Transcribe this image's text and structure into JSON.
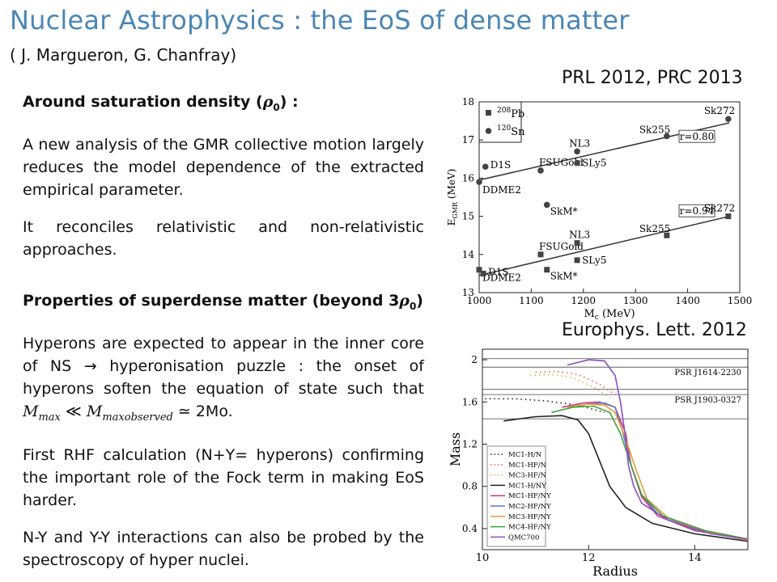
{
  "title": "Nuclear Astrophysics : the EoS of dense matter",
  "authors": "( J. Margueron, G. Chanfray)",
  "sections": [
    {
      "heading_prefix": "Around saturation density (",
      "heading_sym": "ρ",
      "heading_sub": "0",
      "heading_suffix": ") :",
      "para1": "A new analysis of the GMR collective motion largely reduces the model dependence of the extracted empirical parameter.",
      "para2": "It reconciles relativistic and non-relativistic approaches."
    },
    {
      "heading_prefix": "Properties of superdense matter (beyond 3",
      "heading_sym": "ρ",
      "heading_sub": "0",
      "heading_suffix": ")",
      "para1a": "Hyperons are expected to appear in the inner core of NS → hyperonisation puzzle : the onset of hyperons soften the equation of state such that ",
      "para1_math_a": "M",
      "para1_math_a_sub": "max",
      "para1_math_op": " ≪ ",
      "para1_math_b": "M",
      "para1_math_b_sub": "maxobserved",
      "para1_math_end": " ≃ 2Mo.",
      "para2": "First RHF calculation (N+Y= hyperons) confirming the important role of the Fock term in making EoS harder.",
      "para3": "N-Y and Y-Y interactions can also be probed by the spectroscopy of hyper nuclei."
    }
  ],
  "ref1": "PRL 2012, PRC 2013",
  "ref2": "Europhys. Lett. 2012",
  "chart_data": [
    {
      "type": "scatter",
      "xlabel": "M",
      "xlabel_sub": "c",
      "xlabel_unit": " (MeV)",
      "ylabel": "E",
      "ylabel_sub": "GMR",
      "ylabel_unit": " (MeV)",
      "xlim": [
        1000,
        1500
      ],
      "ylim": [
        13,
        18
      ],
      "xticks": [
        1000,
        1100,
        1200,
        1300,
        1400,
        1500
      ],
      "yticks": [
        13,
        14,
        15,
        16,
        17,
        18
      ],
      "legend": [
        {
          "marker": "square",
          "mass": "208",
          "label": "Pb"
        },
        {
          "marker": "circle",
          "mass": "120",
          "label": "Sn"
        }
      ],
      "series": [
        {
          "marker": "circle",
          "fit": "r=0.80",
          "fit_line": [
            [
              1000,
              15.95
            ],
            [
              1480,
              17.45
            ]
          ],
          "points": [
            {
              "x": 1000,
              "y": 15.9,
              "label": "DDME2"
            },
            {
              "x": 1012,
              "y": 16.3,
              "label": "D1S"
            },
            {
              "x": 1118,
              "y": 16.2,
              "label": "FSUGold"
            },
            {
              "x": 1130,
              "y": 15.3,
              "label": "SkM*"
            },
            {
              "x": 1188,
              "y": 16.7,
              "label": "NL3"
            },
            {
              "x": 1188,
              "y": 16.4,
              "label": "SLy5"
            },
            {
              "x": 1360,
              "y": 17.1,
              "label": "Sk255"
            },
            {
              "x": 1478,
              "y": 17.55,
              "label": "Sk272"
            }
          ]
        },
        {
          "marker": "square",
          "fit": "r=0.94",
          "fit_line": [
            [
              1000,
              13.45
            ],
            [
              1480,
              15.0
            ]
          ],
          "points": [
            {
              "x": 1000,
              "y": 13.6,
              "label": "DDME2"
            },
            {
              "x": 1008,
              "y": 13.5,
              "label": "D1S"
            },
            {
              "x": 1118,
              "y": 14.0,
              "label": "FSUGold"
            },
            {
              "x": 1130,
              "y": 13.6,
              "label": "SkM*"
            },
            {
              "x": 1188,
              "y": 14.3,
              "label": "NL3"
            },
            {
              "x": 1188,
              "y": 13.85,
              "label": "SLy5"
            },
            {
              "x": 1360,
              "y": 14.5,
              "label": "Sk255"
            },
            {
              "x": 1478,
              "y": 15.0,
              "label": "Sk272"
            }
          ]
        }
      ]
    },
    {
      "type": "line",
      "xlabel": "Radius",
      "ylabel": "Mass",
      "xlim": [
        10,
        15
      ],
      "ylim": [
        0.2,
        2.1
      ],
      "xticks": [
        10,
        12,
        14
      ],
      "yticks": [
        0.4,
        0.8,
        1.2,
        1.6,
        2
      ],
      "hlines": [
        {
          "y": 2.01,
          "label": ""
        },
        {
          "y": 1.93,
          "label": "PSR J1614-2230"
        },
        {
          "y": 1.72,
          "label": ""
        },
        {
          "y": 1.67,
          "label": "PSR J1903-0327"
        },
        {
          "y": 1.44,
          "label": ""
        }
      ],
      "series": [
        {
          "name": "MC1-H/N",
          "color": "#222222",
          "dash": "dot",
          "points": [
            [
              10.05,
              1.63
            ],
            [
              10.6,
              1.63
            ],
            [
              11.2,
              1.61
            ],
            [
              11.8,
              1.57
            ],
            [
              12.3,
              1.5
            ]
          ]
        },
        {
          "name": "MC1-HF/N",
          "color": "#e06050",
          "dash": "dot",
          "points": [
            [
              11.0,
              1.88
            ],
            [
              11.4,
              1.89
            ],
            [
              11.8,
              1.86
            ],
            [
              12.2,
              1.77
            ],
            [
              12.5,
              1.67
            ]
          ]
        },
        {
          "name": "MC3-HF/N",
          "color": "#e0b040",
          "dash": "dot",
          "points": [
            [
              10.9,
              1.85
            ],
            [
              11.3,
              1.86
            ],
            [
              11.7,
              1.83
            ],
            [
              12.1,
              1.74
            ],
            [
              12.4,
              1.64
            ]
          ]
        },
        {
          "name": "MC1-H/NY",
          "color": "#222222",
          "dash": "solid",
          "points": [
            [
              10.4,
              1.42
            ],
            [
              11.0,
              1.46
            ],
            [
              11.5,
              1.47
            ],
            [
              11.8,
              1.43
            ],
            [
              12.0,
              1.3
            ],
            [
              12.2,
              1.05
            ],
            [
              12.4,
              0.8
            ],
            [
              12.7,
              0.6
            ],
            [
              13.2,
              0.45
            ],
            [
              14.0,
              0.35
            ],
            [
              15.0,
              0.28
            ]
          ]
        },
        {
          "name": "MC1-HF/NY",
          "color": "#d03a7a",
          "dash": "solid",
          "points": [
            [
              11.5,
              1.55
            ],
            [
              11.9,
              1.59
            ],
            [
              12.2,
              1.6
            ],
            [
              12.5,
              1.55
            ],
            [
              12.7,
              1.3
            ],
            [
              12.8,
              1.0
            ],
            [
              13.0,
              0.7
            ],
            [
              13.3,
              0.52
            ],
            [
              14.0,
              0.38
            ],
            [
              15.0,
              0.3
            ]
          ]
        },
        {
          "name": "MC2-HF/NY",
          "color": "#5b7bd0",
          "dash": "solid",
          "points": [
            [
              11.6,
              1.54
            ],
            [
              12.0,
              1.58
            ],
            [
              12.3,
              1.59
            ],
            [
              12.5,
              1.55
            ],
            [
              12.65,
              1.3
            ],
            [
              12.8,
              1.0
            ],
            [
              13.0,
              0.72
            ],
            [
              13.3,
              0.54
            ],
            [
              14.0,
              0.39
            ],
            [
              15.0,
              0.3
            ]
          ]
        },
        {
          "name": "MC3-HF/NY",
          "color": "#e0a030",
          "dash": "solid",
          "points": [
            [
              11.6,
              1.55
            ],
            [
              12.0,
              1.58
            ],
            [
              12.3,
              1.57
            ],
            [
              12.5,
              1.5
            ],
            [
              12.7,
              1.25
            ],
            [
              12.9,
              0.95
            ],
            [
              13.1,
              0.68
            ],
            [
              13.5,
              0.5
            ],
            [
              14.2,
              0.37
            ],
            [
              15.0,
              0.29
            ]
          ]
        },
        {
          "name": "MC4-HF/NY",
          "color": "#40a040",
          "dash": "solid",
          "points": [
            [
              11.3,
              1.5
            ],
            [
              11.7,
              1.55
            ],
            [
              12.1,
              1.56
            ],
            [
              12.4,
              1.5
            ],
            [
              12.6,
              1.3
            ],
            [
              12.8,
              1.0
            ],
            [
              13.0,
              0.72
            ],
            [
              13.4,
              0.52
            ],
            [
              14.2,
              0.38
            ],
            [
              15.0,
              0.3
            ]
          ]
        },
        {
          "name": "QMC700",
          "color": "#8a4fc0",
          "dash": "solid",
          "points": [
            [
              11.6,
              1.95
            ],
            [
              12.0,
              2.0
            ],
            [
              12.3,
              1.99
            ],
            [
              12.5,
              1.85
            ],
            [
              12.6,
              1.6
            ],
            [
              12.7,
              1.25
            ],
            [
              12.75,
              1.0
            ],
            [
              12.85,
              0.8
            ],
            [
              13.0,
              0.64
            ],
            [
              13.5,
              0.48
            ],
            [
              14.3,
              0.35
            ],
            [
              15.0,
              0.3
            ]
          ]
        }
      ]
    }
  ]
}
